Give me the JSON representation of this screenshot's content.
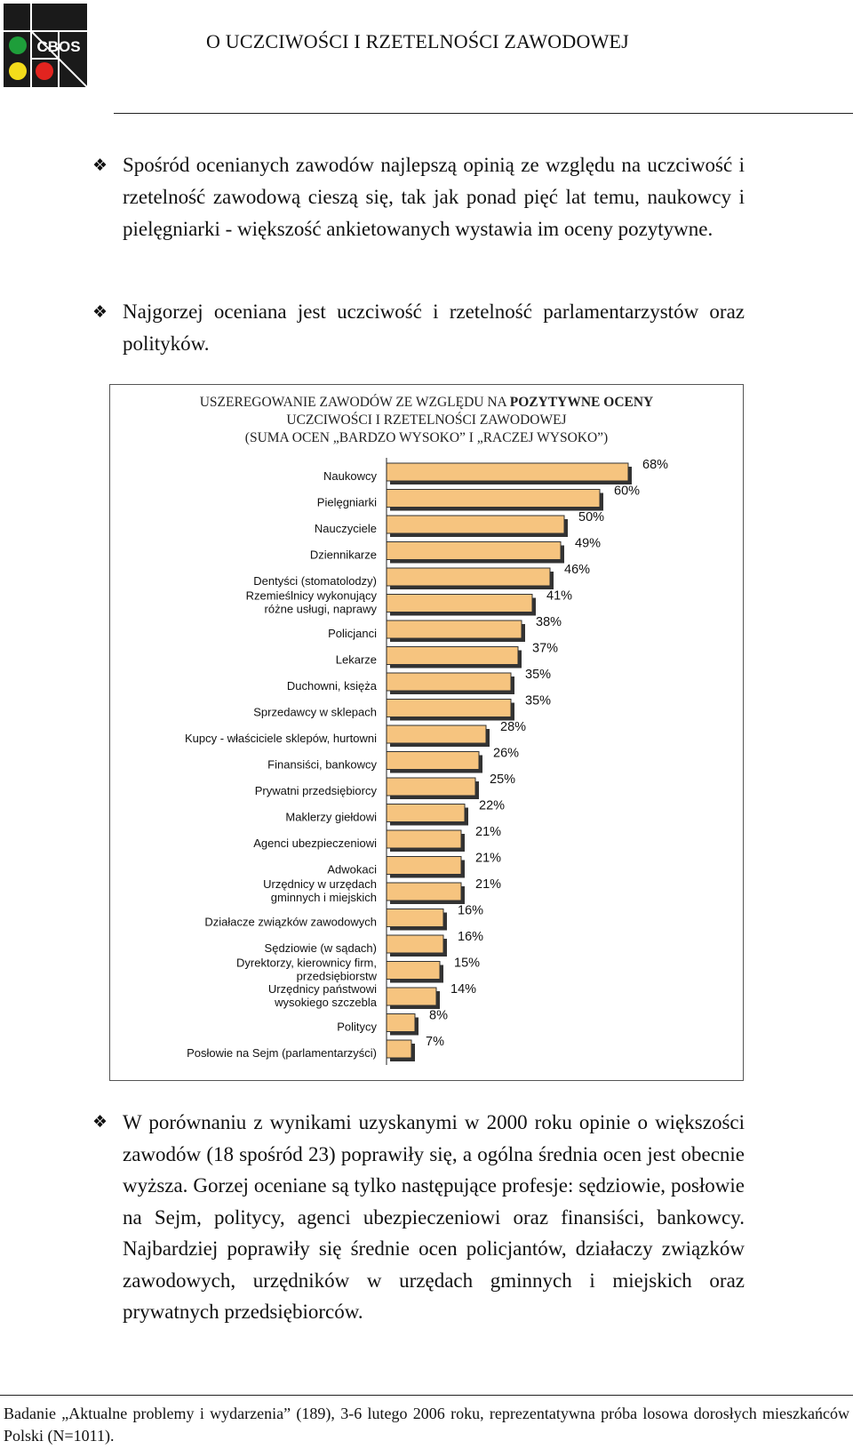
{
  "header": {
    "logo_text": "CBOS",
    "title": "O UCZCIWOŚCI I RZETELNOŚCI ZAWODOWEJ"
  },
  "bullets": {
    "b1": "Spośród ocenianych zawodów najlepszą opinią ze względu na uczciwość i rzetelność zawodową cieszą się, tak jak ponad pięć lat temu, naukowcy i pielęgniarki - większość ankietowanych wystawia im oceny pozytywne.",
    "b2": "Najgorzej oceniana jest uczciwość i rzetelność parlamentarzystów oraz polityków.",
    "b3": "W porównaniu z wynikami uzyskanymi w 2000 roku opinie o większości zawodów (18 spośród 23) poprawiły się, a ogólna średnia ocen jest obecnie wyższa. Gorzej oceniane są tylko następujące profesje: sędziowie, posłowie na Sejm, politycy, agenci ubezpieczeniowi oraz finansiści, bankowcy. Najbardziej poprawiły się średnie ocen policjantów, działaczy związków zawodowych, urzędników w urzędach gminnych i miejskich oraz prywatnych przedsiębiorców."
  },
  "chart_data": {
    "type": "bar",
    "orientation": "horizontal",
    "title_line1_prefix": "USZEREGOWANIE ZAWODÓW ZE WZGLĘDU NA ",
    "title_line1_bold": "POZYTYWNE OCENY",
    "title_line2": "UCZCIWOŚCI I  RZETELNOŚCI ZAWODOWEJ",
    "title_line3": "(SUMA OCEN „BARDZO WYSOKO” I „RACZEJ WYSOKO”)",
    "unit": "%",
    "bar_color": "#f6c47f",
    "bar_shadow_color": "#333333",
    "categories": [
      "Naukowcy",
      "Pielęgniarki",
      "Nauczyciele",
      "Dziennikarze",
      "Dentyści (stomatolodzy)",
      "Rzemieślnicy wykonujący\nróżne usługi, naprawy",
      "Policjanci",
      "Lekarze",
      "Duchowni, księża",
      "Sprzedawcy w sklepach",
      "Kupcy - właściciele sklepów, hurtowni",
      "Finansiści, bankowcy",
      "Prywatni przedsiębiorcy",
      "Maklerzy giełdowi",
      "Agenci ubezpieczeniowi",
      "Adwokaci",
      "Urzędnicy w urzędach\ngminnych i miejskich",
      "Działacze związków zawodowych",
      "Sędziowie (w sądach)",
      "Dyrektorzy, kierownicy firm,\nprzedsiębiorstw",
      "Urzędnicy państwowi\nwysokiego szczebla",
      "Politycy",
      "Posłowie na Sejm (parlamentarzyści)"
    ],
    "values": [
      68,
      60,
      50,
      49,
      46,
      41,
      38,
      37,
      35,
      35,
      28,
      26,
      25,
      22,
      21,
      21,
      21,
      16,
      16,
      15,
      14,
      8,
      7
    ],
    "xlim": [
      0,
      100
    ]
  },
  "footer": {
    "text": "Badanie „Aktualne problemy i wydarzenia” (189), 3-6 lutego 2006 roku, reprezentatywna próba losowa dorosłych mieszkańców Polski (N=1011)."
  }
}
